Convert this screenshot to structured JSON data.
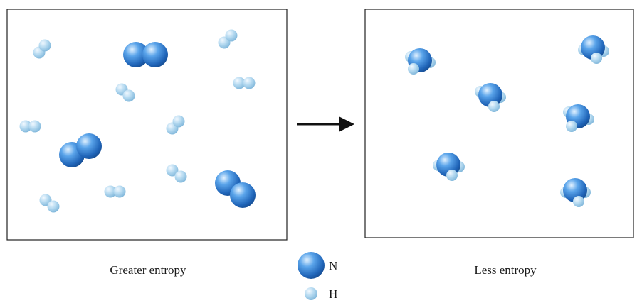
{
  "panels": {
    "left": {
      "caption": "Greater entropy"
    },
    "right": {
      "caption": "Less entropy"
    }
  },
  "legend": {
    "nitrogen": {
      "symbol": "N"
    },
    "hydrogen": {
      "symbol": "H"
    }
  },
  "colors": {
    "nitrogen": "#2f7fd1",
    "hydrogen": "#a9d3ec",
    "arrow": "#111111",
    "frame": "#222222"
  },
  "reaction": {
    "reactants": {
      "N2": 3,
      "H2": 9
    },
    "products": {
      "NH3": 6
    }
  }
}
